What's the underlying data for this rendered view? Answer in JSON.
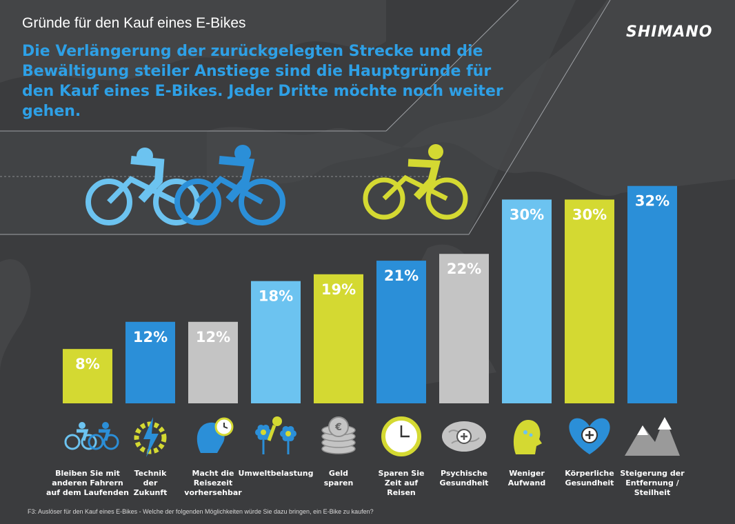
{
  "header": {
    "title": "Gründe für den Kauf eines E-Bikes",
    "brand": "SHIMANO",
    "headline": "Die Verlängerung der zurückgelegten Strecke und die Bewältigung steiler Anstiege sind die Hauptgründe für den Kauf eines E-Bikes. Jeder Dritte möchte noch weiter gehen."
  },
  "footnote": "F3: Auslöser für den Kauf eines E-Bikes - Welche der folgenden Möglichkeiten würde Sie dazu bringen, ein E-Bike zu kaufen?",
  "colors": {
    "background": "#3b3c3e",
    "yellow": "#d4d932",
    "blue": "#2b8fd8",
    "grey": "#c4c4c4",
    "light_blue": "#6cc3f0",
    "headline": "#2ea0e6"
  },
  "chart_data": {
    "type": "bar",
    "title": "",
    "xlabel": "",
    "ylabel": "",
    "ylim": [
      0,
      34
    ],
    "grid": false,
    "categories": [
      [
        "Bleiben Sie mit",
        "anderen Fahrern",
        "auf dem Laufenden"
      ],
      [
        "Technik",
        "der",
        "Zukunft"
      ],
      [
        "Macht die",
        "Reisezeit",
        "vorhersehbar"
      ],
      [
        "Umweltbelastung"
      ],
      [
        "Geld",
        "sparen"
      ],
      [
        "Sparen Sie",
        "Zeit auf",
        "Reisen"
      ],
      [
        "Psychische",
        "Gesundheit"
      ],
      [
        "Weniger",
        "Aufwand"
      ],
      [
        "Körperliche",
        "Gesundheit"
      ],
      [
        "Steigerung der",
        "Entfernung /",
        "Steilheit"
      ]
    ],
    "values": [
      8,
      12,
      12,
      18,
      19,
      21,
      22,
      30,
      30,
      32
    ],
    "value_labels": [
      "8%",
      "12%",
      "12%",
      "18%",
      "19%",
      "21%",
      "22%",
      "30%",
      "30%",
      "32%"
    ],
    "bar_colors": [
      "#d4d932",
      "#2b8fd8",
      "#c4c4c4",
      "#6cc3f0",
      "#d4d932",
      "#2b8fd8",
      "#c4c4c4",
      "#6cc3f0",
      "#d4d932",
      "#2b8fd8"
    ],
    "icons": [
      "cyclists-icon",
      "lightning-gear-icon",
      "head-clock-icon",
      "flowers-icon",
      "coins-icon",
      "clock-icon",
      "brain-plus-icon",
      "head-sweat-icon",
      "heart-plus-icon",
      "mountains-icon"
    ]
  }
}
